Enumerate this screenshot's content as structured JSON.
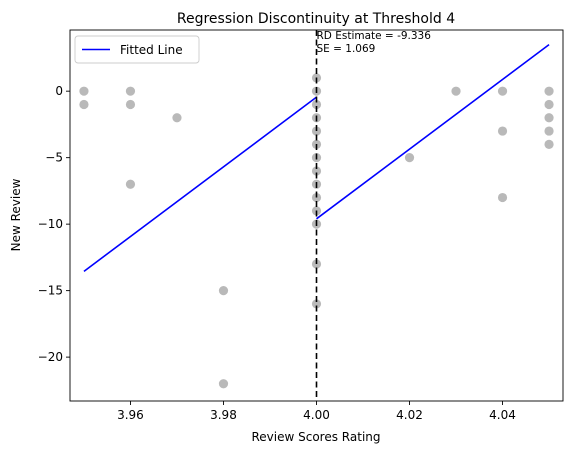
{
  "chart_data": {
    "type": "scatter",
    "title": "Regression Discontinuity at Threshold 4",
    "xlabel": "Review Scores Rating",
    "ylabel": "New Review",
    "xlim": [
      3.947,
      4.053
    ],
    "ylim": [
      -23.3,
      4.6
    ],
    "x_ticks": [
      3.96,
      3.98,
      4.0,
      4.02,
      4.04
    ],
    "x_tick_labels": [
      "3.96",
      "3.98",
      "4.00",
      "4.02",
      "4.04"
    ],
    "y_ticks": [
      0,
      -5,
      -10,
      -15,
      -20
    ],
    "y_tick_labels": [
      "0",
      "−5",
      "−10",
      "−15",
      "−20"
    ],
    "grid": false,
    "threshold": 4.0,
    "points": [
      {
        "x": 3.95,
        "y": 0
      },
      {
        "x": 3.95,
        "y": -1
      },
      {
        "x": 3.96,
        "y": 0
      },
      {
        "x": 3.96,
        "y": -1
      },
      {
        "x": 3.96,
        "y": -7
      },
      {
        "x": 3.97,
        "y": -2
      },
      {
        "x": 3.98,
        "y": -15
      },
      {
        "x": 3.98,
        "y": -22
      },
      {
        "x": 4.0,
        "y": 1
      },
      {
        "x": 4.0,
        "y": 0
      },
      {
        "x": 4.0,
        "y": -1
      },
      {
        "x": 4.0,
        "y": -2
      },
      {
        "x": 4.0,
        "y": -3
      },
      {
        "x": 4.0,
        "y": -4
      },
      {
        "x": 4.0,
        "y": -5
      },
      {
        "x": 4.0,
        "y": -6
      },
      {
        "x": 4.0,
        "y": -7
      },
      {
        "x": 4.0,
        "y": -8
      },
      {
        "x": 4.0,
        "y": -9
      },
      {
        "x": 4.0,
        "y": -10
      },
      {
        "x": 4.0,
        "y": -13
      },
      {
        "x": 4.0,
        "y": -16
      },
      {
        "x": 4.02,
        "y": -5
      },
      {
        "x": 4.03,
        "y": 0
      },
      {
        "x": 4.04,
        "y": 0
      },
      {
        "x": 4.04,
        "y": -3
      },
      {
        "x": 4.04,
        "y": -8
      },
      {
        "x": 4.05,
        "y": 0
      },
      {
        "x": 4.05,
        "y": -1
      },
      {
        "x": 4.05,
        "y": -2
      },
      {
        "x": 4.05,
        "y": -3
      },
      {
        "x": 4.05,
        "y": -4
      }
    ],
    "series": [
      {
        "name": "Fitted Line",
        "segments": [
          {
            "x": [
              3.95,
              4.0
            ],
            "y": [
              -13.55,
              -0.45
            ]
          },
          {
            "x": [
              4.0,
              4.05
            ],
            "y": [
              -9.6,
              3.5
            ]
          }
        ]
      }
    ],
    "legend": {
      "position": "top-left",
      "entries": [
        "Fitted Line"
      ]
    },
    "annotations": [
      "RD Estimate = -9.336",
      "SE = 1.069"
    ],
    "colors": {
      "points": "#808080",
      "line": "#0000ff",
      "threshold": "#000000"
    }
  }
}
